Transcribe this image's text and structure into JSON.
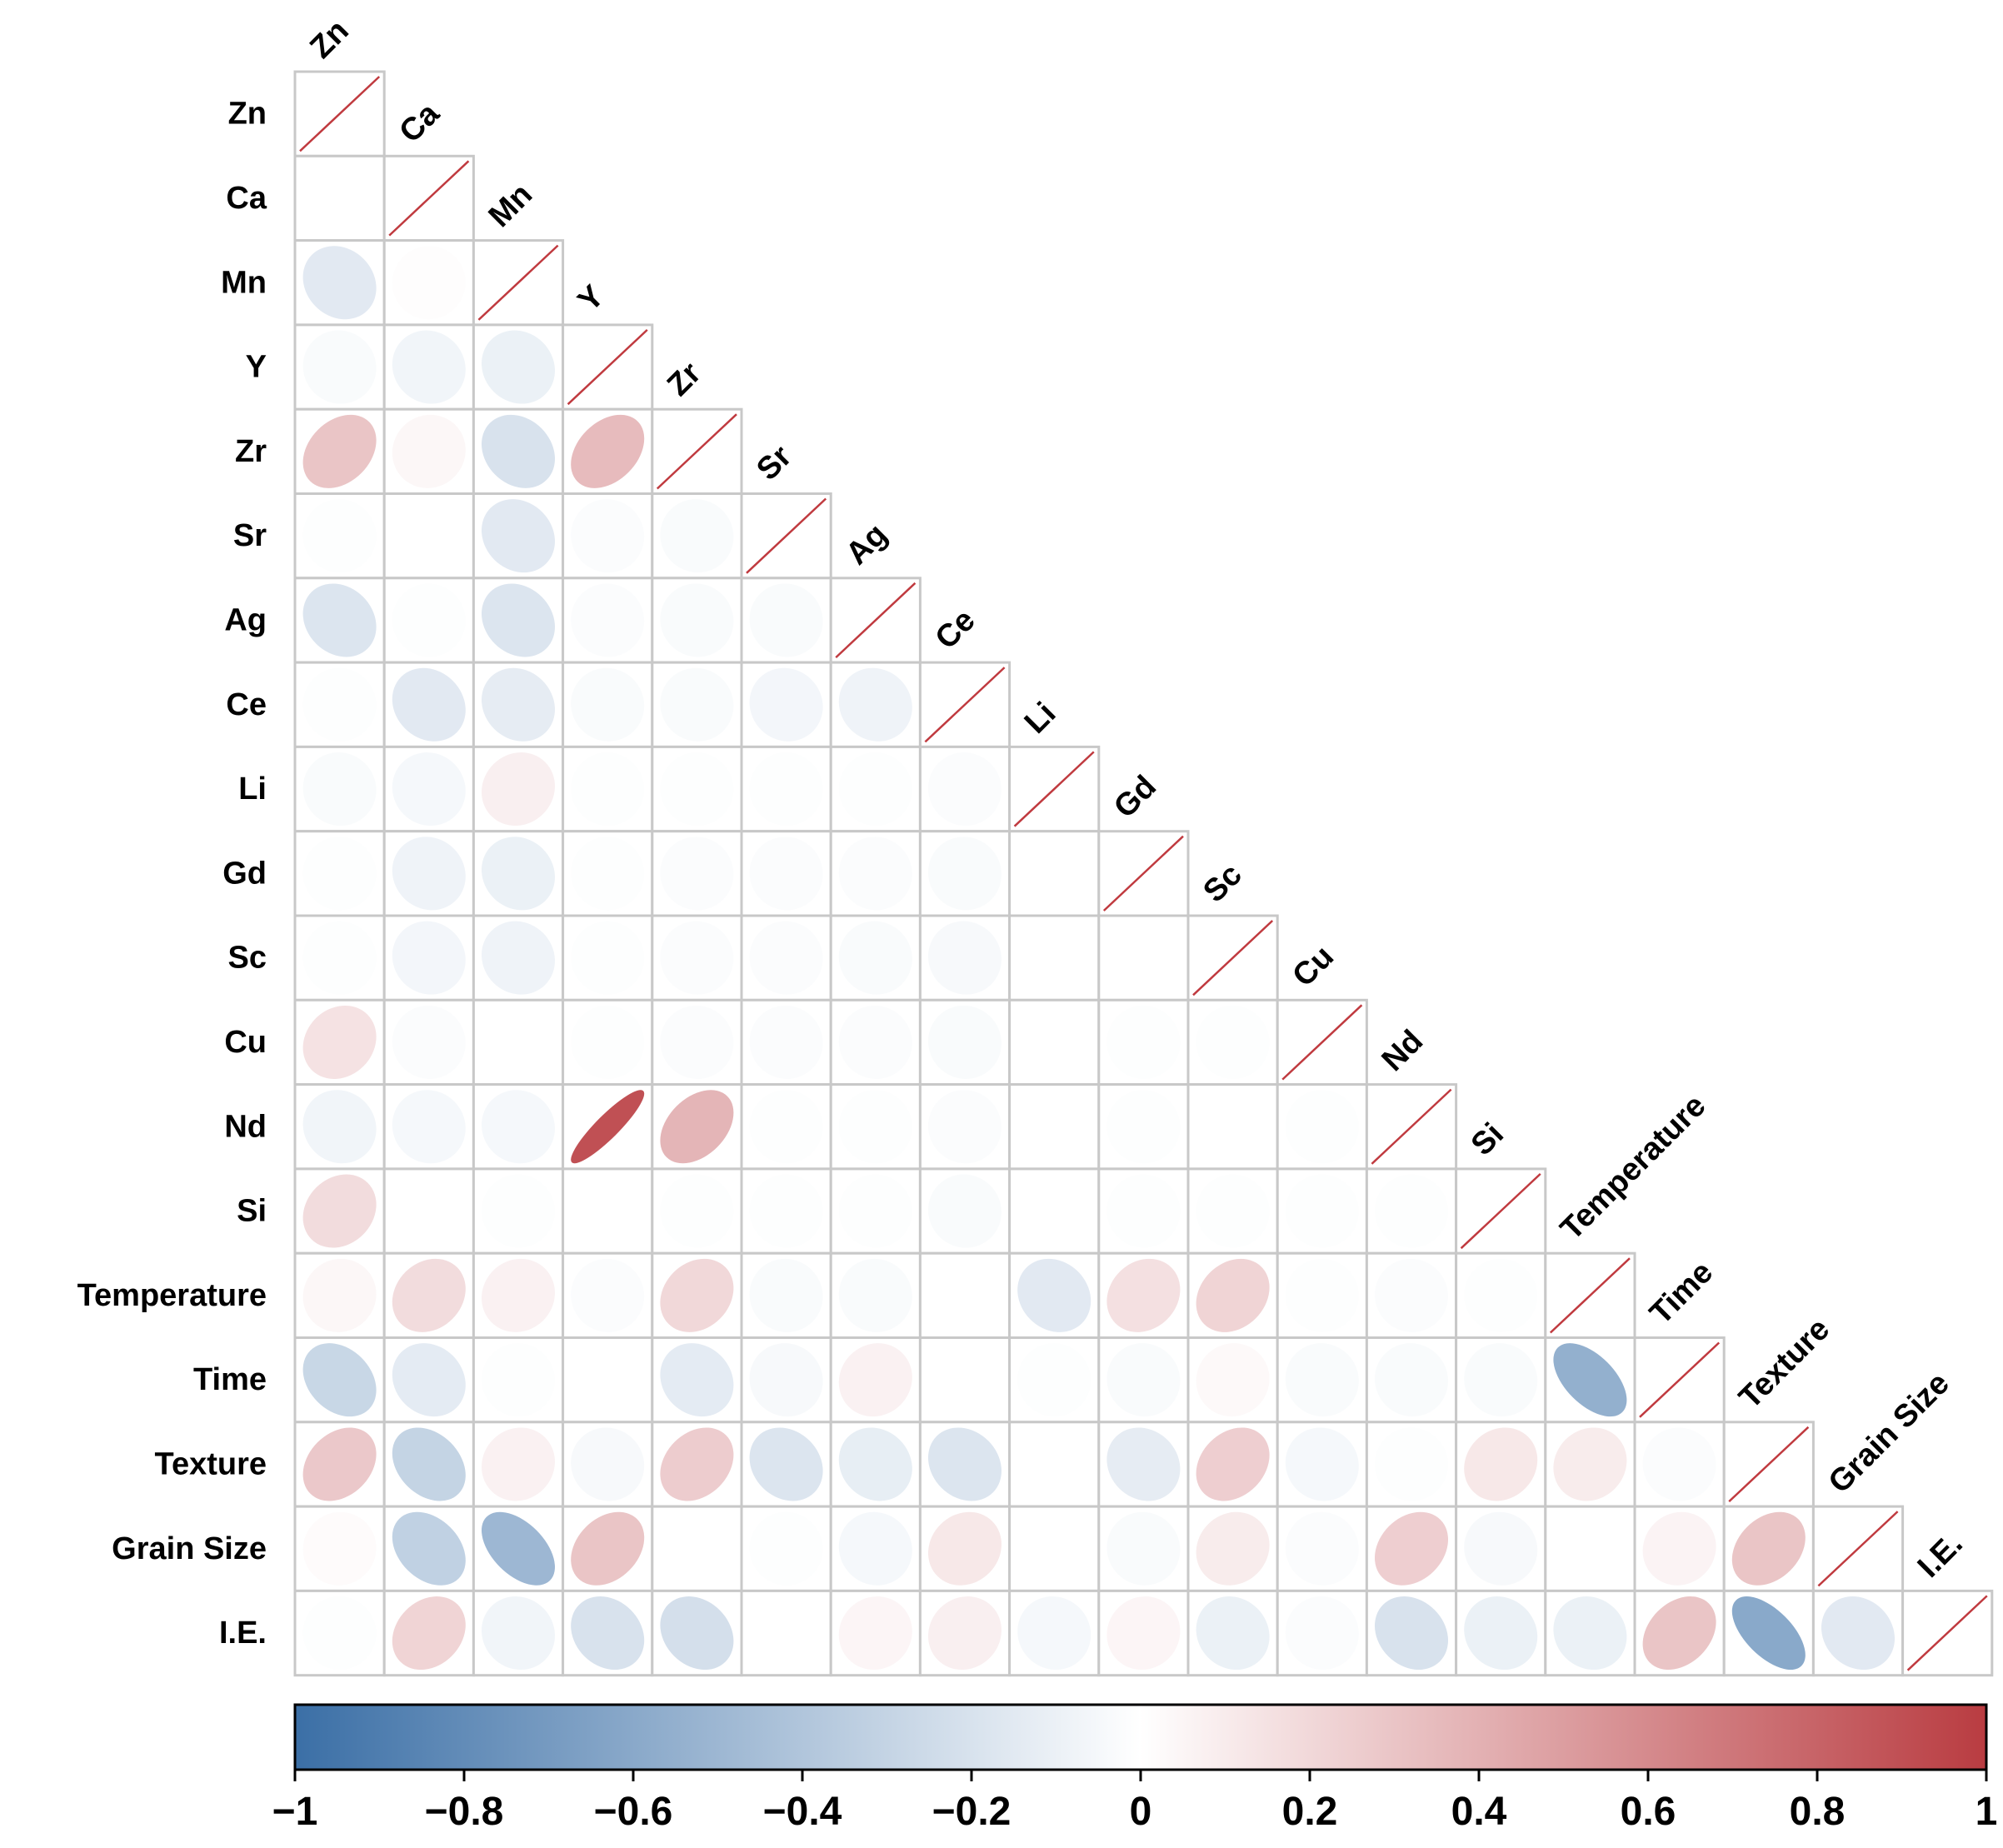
{
  "chart_data": {
    "type": "heatmap",
    "subtype": "correlation-matrix-ellipse-lower",
    "variables": [
      "Zn",
      "Ca",
      "Mn",
      "Y",
      "Zr",
      "Sr",
      "Ag",
      "Ce",
      "Li",
      "Gd",
      "Sc",
      "Cu",
      "Nd",
      "Si",
      "Temperature",
      "Time",
      "Texture",
      "Grain Size",
      "I.E."
    ],
    "matrix": [
      [
        1
      ],
      [
        0.0,
        1
      ],
      [
        -0.15,
        0.01,
        1
      ],
      [
        -0.03,
        -0.07,
        -0.1,
        1
      ],
      [
        0.3,
        0.04,
        -0.2,
        0.35,
        1
      ],
      [
        -0.01,
        0.0,
        -0.15,
        -0.02,
        -0.03,
        1
      ],
      [
        -0.18,
        -0.01,
        -0.18,
        -0.02,
        -0.03,
        -0.03,
        1
      ],
      [
        -0.01,
        -0.15,
        -0.13,
        -0.03,
        -0.03,
        -0.06,
        -0.08,
        1
      ],
      [
        -0.03,
        -0.05,
        0.08,
        -0.01,
        -0.01,
        -0.01,
        -0.01,
        -0.02,
        1
      ],
      [
        -0.01,
        -0.08,
        -0.1,
        -0.01,
        -0.02,
        -0.02,
        -0.02,
        -0.03,
        0.0,
        1
      ],
      [
        -0.01,
        -0.06,
        -0.08,
        -0.01,
        -0.02,
        -0.02,
        -0.03,
        -0.04,
        0.0,
        0.0,
        1
      ],
      [
        0.15,
        -0.02,
        0.0,
        -0.01,
        -0.02,
        -0.02,
        -0.02,
        -0.03,
        0.0,
        -0.01,
        -0.01,
        1
      ],
      [
        -0.07,
        -0.05,
        -0.05,
        0.9,
        0.38,
        -0.01,
        -0.01,
        -0.02,
        0.0,
        -0.01,
        0.0,
        -0.01,
        1
      ],
      [
        0.18,
        0.0,
        -0.01,
        0.0,
        -0.01,
        -0.01,
        -0.01,
        -0.03,
        0.0,
        -0.01,
        -0.01,
        -0.01,
        -0.01,
        1
      ],
      [
        0.04,
        0.18,
        0.07,
        -0.02,
        0.2,
        -0.03,
        -0.03,
        0.0,
        -0.15,
        0.16,
        0.22,
        -0.01,
        -0.02,
        -0.01,
        1
      ],
      [
        -0.28,
        -0.14,
        -0.01,
        0.0,
        -0.14,
        -0.04,
        0.07,
        0.0,
        -0.01,
        -0.03,
        0.03,
        -0.03,
        -0.03,
        -0.03,
        -0.55,
        1
      ],
      [
        0.28,
        -0.3,
        0.07,
        -0.04,
        0.26,
        -0.18,
        -0.12,
        -0.18,
        0.0,
        -0.13,
        0.25,
        -0.05,
        -0.01,
        0.12,
        0.1,
        -0.02,
        1
      ],
      [
        0.02,
        -0.32,
        -0.5,
        0.3,
        0.0,
        -0.01,
        -0.05,
        0.12,
        0.0,
        -0.03,
        0.1,
        -0.02,
        0.25,
        -0.04,
        0.0,
        0.06,
        0.3,
        1
      ],
      [
        -0.01,
        0.22,
        -0.07,
        -0.2,
        -0.22,
        0.0,
        0.05,
        0.08,
        -0.05,
        0.05,
        -0.1,
        -0.02,
        -0.2,
        -0.1,
        -0.1,
        0.3,
        -0.6,
        -0.15,
        1
      ]
    ],
    "colorbar": {
      "min": -1,
      "max": 1,
      "ticks": [
        "−1",
        "−0.8",
        "−0.6",
        "−0.4",
        "−0.2",
        "0",
        "0.2",
        "0.4",
        "0.6",
        "0.8",
        "1"
      ],
      "low_color": "#3b6fa6",
      "mid_color": "#ffffff",
      "high_color": "#b93c41"
    },
    "diagonal_line_color": "#c03a3f",
    "grid_color": "#c8c8c8"
  }
}
